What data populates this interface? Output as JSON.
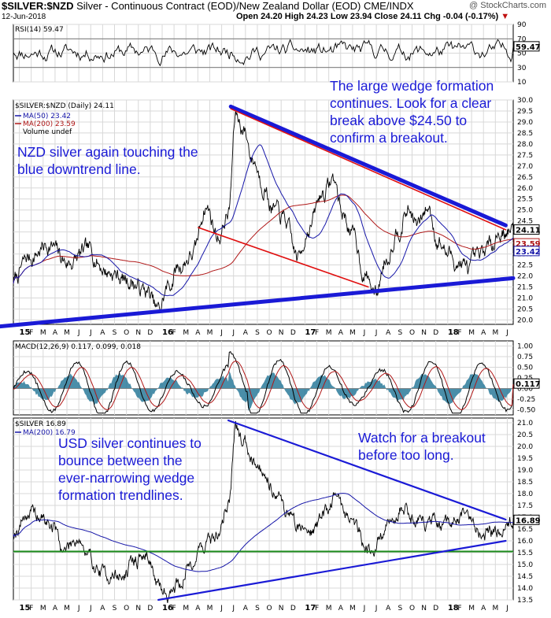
{
  "header": {
    "symbol": "$SILVER:$NZD",
    "description": "Silver - Continuous Contract (EOD)/New Zealand Dollar (EOD) CME/INDX",
    "date": "12-Jun-2018",
    "ohlc": "Open 24.20  High 24.23  Low 23.94  Close 24.11  Chg -0.04 (-0.17%)",
    "chg_marker": "▼",
    "brand": "@ StockCharts.com"
  },
  "colors": {
    "price": "#000000",
    "ma50": "#1515a8",
    "ma200": "#b01818",
    "trend_blue": "#1a1ad6",
    "channel_red": "#e01010",
    "support_green": "#1a8a1a",
    "macd_hist": "#2a7a9a",
    "annotation": "#1a1ad6",
    "grid": "#d8d8d8"
  },
  "x_axis": {
    "labels": [
      "15",
      "F",
      "M",
      "A",
      "M",
      "J",
      "J",
      "A",
      "S",
      "O",
      "N",
      "D",
      "16",
      "F",
      "M",
      "A",
      "M",
      "J",
      "J",
      "A",
      "S",
      "O",
      "N",
      "D",
      "17",
      "F",
      "M",
      "A",
      "M",
      "J",
      "J",
      "A",
      "S",
      "O",
      "N",
      "D",
      "18",
      "F",
      "M",
      "A",
      "M",
      "J"
    ],
    "bold_labels": [
      "15",
      "16",
      "17",
      "18"
    ]
  },
  "rsi": {
    "label": "RSI(14) 59.47",
    "last": "59.47",
    "ticks": [
      "90",
      "70",
      "50",
      "30",
      "10"
    ]
  },
  "main": {
    "label": "$SILVER:$NZD (Daily) 24.11",
    "legend": [
      "MA(50) 23.42",
      "MA(200) 23.59",
      "Volume undef"
    ],
    "ticks": [
      "30.0",
      "29.5",
      "29.0",
      "28.5",
      "28.0",
      "27.5",
      "27.0",
      "26.5",
      "26.0",
      "25.5",
      "25.0",
      "24.5",
      "24.0",
      "23.5",
      "23.0",
      "22.5",
      "22.0",
      "21.5",
      "21.0",
      "20.5",
      "20.0"
    ],
    "last_labels": [
      "24.11",
      "23.59",
      "23.42"
    ]
  },
  "macd": {
    "label": "MACD(12,26,9) 0.117, 0.099, 0.018",
    "ticks": [
      "1.00",
      "0.75",
      "0.50",
      "0.25",
      "0.00",
      "-0.25",
      "-0.50"
    ],
    "last_label": "0.117"
  },
  "usd": {
    "label": "$SILVER 16.89",
    "legend": "MA(200) 16.79",
    "ticks": [
      "21.0",
      "20.5",
      "20.0",
      "19.5",
      "19.0",
      "18.5",
      "18.0",
      "17.5",
      "17.0",
      "16.5",
      "16.0",
      "15.5",
      "15.0",
      "14.5",
      "14.0",
      "13.5"
    ],
    "last_label": "16.89"
  },
  "annotations": {
    "nzd_touch": [
      "NZD silver again touching the",
      "blue downtrend line."
    ],
    "wedge": [
      "The large wedge formation",
      "continues. Look for a clear",
      "break above $24.50 to",
      "confirm a breakout."
    ],
    "usd_bounce": [
      "USD silver continues to",
      "bounce between the",
      "ever-narrowing wedge",
      "formation trendlines."
    ],
    "watch": [
      "Watch for a breakout",
      "before too long."
    ]
  },
  "chart_data": [
    {
      "type": "line",
      "title": "RSI(14)",
      "last": 59.47,
      "ylim": [
        10,
        90
      ],
      "reference_lines": [
        30,
        70
      ],
      "x_range": [
        "2015-01-01",
        "2018-06-12"
      ]
    },
    {
      "type": "line",
      "title": "$SILVER:$NZD (Daily)",
      "ylim": [
        19.8,
        30.0
      ],
      "x_range": [
        "2015-01-01",
        "2018-06-12"
      ],
      "series": [
        {
          "name": "$SILVER:$NZD",
          "anchors": [
            [
              0,
              21.8
            ],
            [
              0.03,
              22.8
            ],
            [
              0.07,
              23.4
            ],
            [
              0.11,
              22.6
            ],
            [
              0.15,
              23.1
            ],
            [
              0.19,
              22.2
            ],
            [
              0.23,
              21.8
            ],
            [
              0.265,
              21.3
            ],
            [
              0.29,
              20.4
            ],
            [
              0.31,
              21.5
            ],
            [
              0.33,
              22.4
            ],
            [
              0.36,
              23.0
            ],
            [
              0.385,
              25.2
            ],
            [
              0.41,
              23.8
            ],
            [
              0.43,
              24.8
            ],
            [
              0.445,
              29.3
            ],
            [
              0.46,
              28.7
            ],
            [
              0.48,
              27.3
            ],
            [
              0.5,
              26.2
            ],
            [
              0.52,
              25.0
            ],
            [
              0.54,
              24.6
            ],
            [
              0.57,
              22.8
            ],
            [
              0.59,
              24.2
            ],
            [
              0.62,
              25.8
            ],
            [
              0.64,
              26.4
            ],
            [
              0.66,
              24.8
            ],
            [
              0.68,
              23.8
            ],
            [
              0.705,
              22.0
            ],
            [
              0.725,
              21.2
            ],
            [
              0.745,
              22.8
            ],
            [
              0.77,
              24.2
            ],
            [
              0.79,
              25.0
            ],
            [
              0.81,
              24.3
            ],
            [
              0.83,
              25.1
            ],
            [
              0.85,
              23.6
            ],
            [
              0.87,
              23.0
            ],
            [
              0.89,
              22.6
            ],
            [
              0.91,
              22.3
            ],
            [
              0.93,
              22.7
            ],
            [
              0.95,
              23.3
            ],
            [
              0.97,
              24.0
            ],
            [
              1.0,
              24.11
            ]
          ],
          "last": 24.11
        },
        {
          "name": "MA(50)",
          "last": 23.42
        },
        {
          "name": "MA(200)",
          "last": 23.59
        }
      ],
      "trendlines": [
        {
          "name": "blue-downtrend",
          "from": [
            0.435,
            29.7
          ],
          "to": [
            0.985,
            24.3
          ]
        },
        {
          "name": "red-upper",
          "from": [
            0.435,
            29.6
          ],
          "to": [
            0.985,
            24.1
          ]
        },
        {
          "name": "red-lower",
          "from": [
            0.37,
            24.2
          ],
          "to": [
            0.71,
            21.5
          ]
        },
        {
          "name": "blue-uptrend",
          "from": [
            -0.03,
            19.7
          ],
          "to": [
            1.0,
            21.9
          ]
        }
      ]
    },
    {
      "type": "line",
      "title": "MACD(12,26,9)",
      "ylim": [
        -0.62,
        1.12
      ],
      "x_range": [
        "2015-01-01",
        "2018-06-12"
      ],
      "series": [
        {
          "name": "MACD",
          "last": 0.117
        },
        {
          "name": "Signal",
          "last": 0.099
        },
        {
          "name": "Histogram",
          "last": 0.018
        }
      ]
    },
    {
      "type": "line",
      "title": "$SILVER",
      "ylim": [
        13.5,
        21.2
      ],
      "x_range": [
        "2015-01-01",
        "2018-06-12"
      ],
      "series": [
        {
          "name": "$SILVER",
          "anchors": [
            [
              0,
              16.4
            ],
            [
              0.03,
              17.2
            ],
            [
              0.05,
              17.0
            ],
            [
              0.08,
              16.6
            ],
            [
              0.1,
              15.6
            ],
            [
              0.13,
              16.2
            ],
            [
              0.15,
              15.2
            ],
            [
              0.18,
              14.6
            ],
            [
              0.22,
              14.5
            ],
            [
              0.245,
              15.2
            ],
            [
              0.27,
              15.4
            ],
            [
              0.29,
              14.0
            ],
            [
              0.31,
              13.8
            ],
            [
              0.33,
              14.2
            ],
            [
              0.36,
              15.2
            ],
            [
              0.38,
              15.9
            ],
            [
              0.41,
              16.2
            ],
            [
              0.43,
              17.6
            ],
            [
              0.445,
              20.6
            ],
            [
              0.46,
              20.2
            ],
            [
              0.48,
              19.6
            ],
            [
              0.5,
              19.0
            ],
            [
              0.52,
              18.3
            ],
            [
              0.55,
              17.2
            ],
            [
              0.57,
              16.6
            ],
            [
              0.6,
              16.5
            ],
            [
              0.625,
              17.2
            ],
            [
              0.645,
              18.0
            ],
            [
              0.665,
              17.2
            ],
            [
              0.69,
              16.5
            ],
            [
              0.705,
              15.8
            ],
            [
              0.72,
              15.6
            ],
            [
              0.74,
              16.3
            ],
            [
              0.76,
              16.9
            ],
            [
              0.78,
              17.5
            ],
            [
              0.8,
              17.0
            ],
            [
              0.83,
              16.8
            ],
            [
              0.86,
              16.5
            ],
            [
              0.88,
              16.8
            ],
            [
              0.9,
              17.1
            ],
            [
              0.92,
              16.7
            ],
            [
              0.94,
              16.3
            ],
            [
              0.96,
              16.5
            ],
            [
              0.98,
              16.6
            ],
            [
              1.0,
              16.89
            ]
          ],
          "last": 16.89
        },
        {
          "name": "MA(200)",
          "last": 16.79
        }
      ],
      "trendlines": [
        {
          "name": "blue-upper",
          "from": [
            0.43,
            21.1
          ],
          "to": [
            0.985,
            16.9
          ]
        },
        {
          "name": "blue-lower",
          "from": [
            0.29,
            13.5
          ],
          "to": [
            0.985,
            16.0
          ]
        }
      ],
      "support_level": 15.55
    }
  ]
}
